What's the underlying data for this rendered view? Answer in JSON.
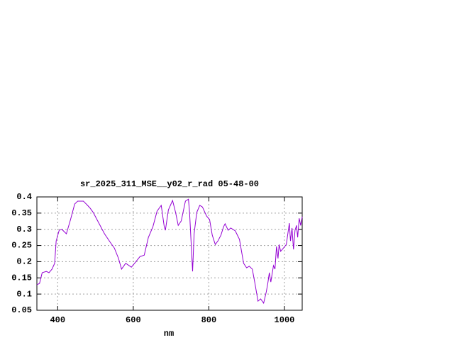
{
  "chart_data": {
    "type": "line",
    "title": "sr_2025_311_MSE__y02_r_rad 05-48-00",
    "x_label": "nm",
    "x": [
      345,
      349,
      352,
      359,
      370,
      377,
      385,
      392,
      396,
      404,
      411,
      423,
      434,
      445,
      453,
      468,
      479,
      486,
      494,
      509,
      524,
      539,
      550,
      561,
      569,
      580,
      595,
      607,
      618,
      629,
      640,
      652,
      663,
      674,
      682,
      685,
      693,
      704,
      712,
      719,
      727,
      738,
      746,
      749,
      757,
      761,
      768,
      776,
      783,
      794,
      802,
      809,
      817,
      824,
      832,
      839,
      843,
      851,
      858,
      870,
      881,
      892,
      900,
      907,
      915,
      922,
      930,
      937,
      945,
      952,
      956,
      960,
      964,
      971,
      975,
      979,
      983,
      986,
      990,
      998,
      1005,
      1013,
      1016,
      1020,
      1024,
      1028,
      1032,
      1035,
      1039,
      1043,
      1047
    ],
    "series": [
      {
        "color": "#9400d3",
        "values": [
          0.129,
          0.131,
          0.133,
          0.166,
          0.17,
          0.166,
          0.177,
          0.195,
          0.264,
          0.297,
          0.3,
          0.286,
          0.33,
          0.378,
          0.387,
          0.387,
          0.374,
          0.365,
          0.352,
          0.319,
          0.286,
          0.26,
          0.242,
          0.21,
          0.177,
          0.195,
          0.183,
          0.2,
          0.216,
          0.22,
          0.275,
          0.308,
          0.356,
          0.374,
          0.308,
          0.297,
          0.36,
          0.389,
          0.352,
          0.312,
          0.326,
          0.387,
          0.393,
          0.352,
          0.17,
          0.286,
          0.352,
          0.374,
          0.369,
          0.341,
          0.33,
          0.282,
          0.253,
          0.264,
          0.282,
          0.308,
          0.317,
          0.297,
          0.304,
          0.295,
          0.269,
          0.195,
          0.181,
          0.186,
          0.177,
          0.133,
          0.078,
          0.085,
          0.072,
          0.107,
          0.133,
          0.166,
          0.137,
          0.188,
          0.177,
          0.247,
          0.21,
          0.253,
          0.232,
          0.243,
          0.253,
          0.319,
          0.264,
          0.304,
          0.238,
          0.297,
          0.312,
          0.275,
          0.334,
          0.312,
          0.339
        ]
      }
    ],
    "xlim": [
      345,
      1047
    ],
    "ylim": [
      0.05,
      0.4
    ],
    "xticks": [
      400,
      600,
      800,
      1000
    ],
    "yticks": [
      0.05,
      0.1,
      0.15,
      0.2,
      0.25,
      0.3,
      0.35,
      0.4
    ],
    "grid": true
  }
}
